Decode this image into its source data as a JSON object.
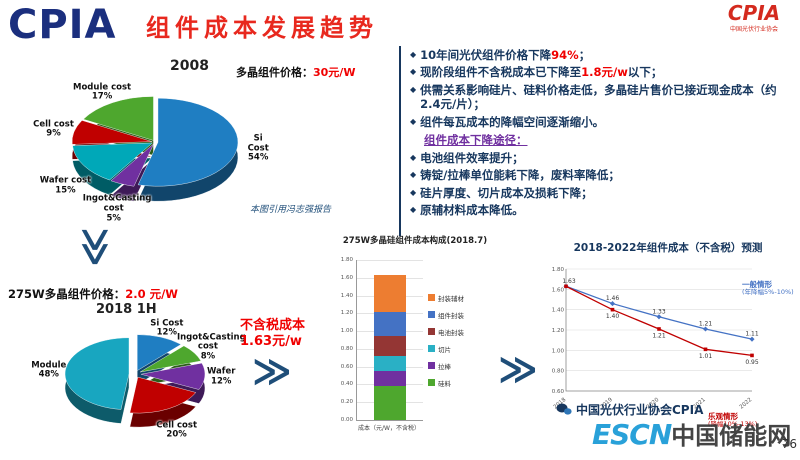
{
  "header": {
    "logo_text": "CPIA",
    "title": "组件成本发展趋势",
    "org_logo_text": "CPIA",
    "org_logo_sub": "中国光伏行业协会"
  },
  "glyphs": {
    "chevron": "≫",
    "bullet": "◆"
  },
  "section_2008": {
    "price_label": "多晶组件价格：",
    "price_value": "30元/W",
    "year": "2008",
    "source_note": "本图引用冯志强报告"
  },
  "section_2018": {
    "price_label": "275W多晶组件价格：",
    "price_value": "2.0 元/W",
    "year": "2018 1H",
    "cost_note_line1": "不含税成本",
    "cost_note_line2": "1.63元/w"
  },
  "bullet_panel": {
    "items": [
      {
        "segments": [
          {
            "t": "10年间光伏组件价格下降"
          },
          {
            "t": "94%",
            "hl": true
          },
          {
            "t": "；"
          }
        ]
      },
      {
        "segments": [
          {
            "t": "现阶段组件不含税成本已下降至"
          },
          {
            "t": "1.8元/w",
            "hl": true
          },
          {
            "t": "以下；"
          }
        ]
      },
      {
        "segments": [
          {
            "t": "供需关系影响硅片、硅料价格走低，多晶硅片售价已接近现金成本（约2.4元/片）；"
          }
        ]
      },
      {
        "segments": [
          {
            "t": "组件每瓦成本的降幅空间逐渐缩小。"
          }
        ]
      }
    ],
    "subheading": "组件成本下降途径：",
    "sub_items": [
      {
        "segments": [
          {
            "t": "电池组件效率提升；"
          }
        ]
      },
      {
        "segments": [
          {
            "t": "铸锭/拉棒单位能耗下降，废料率降低；"
          }
        ]
      },
      {
        "segments": [
          {
            "t": "硅片厚度、切片成本及损耗下降；"
          }
        ]
      },
      {
        "segments": [
          {
            "t": "原辅材料成本降低。"
          }
        ]
      }
    ]
  },
  "chart_data": [
    {
      "id": "pie2008",
      "type": "pie",
      "title": "2008",
      "slices": [
        {
          "label": "Si Cost",
          "pct": "54%",
          "value": 54,
          "color": "#1f7ec2"
        },
        {
          "label": "Ingot&Casting cost",
          "pct": "5%",
          "value": 5,
          "color": "#7030a0"
        },
        {
          "label": "Wafer cost",
          "pct": "15%",
          "value": 15,
          "color": "#00a8b8"
        },
        {
          "label": "Cell cost",
          "pct": "9%",
          "value": 9,
          "color": "#c00000"
        },
        {
          "label": "Module cost",
          "pct": "17%",
          "value": 17,
          "color": "#4ea72e"
        }
      ]
    },
    {
      "id": "pie2018",
      "type": "pie",
      "title": "2018 1H",
      "slices": [
        {
          "label": "Si Cost",
          "pct": "12%",
          "value": 12,
          "color": "#1f7ec2"
        },
        {
          "label": "Ingot&Casting cost",
          "pct": "8%",
          "value": 8,
          "color": "#4ea72e"
        },
        {
          "label": "Wafer",
          "pct": "12%",
          "value": 12,
          "color": "#7030a0"
        },
        {
          "label": "Cell cost",
          "pct": "20%",
          "value": 20,
          "color": "#c00000"
        },
        {
          "label": "Module",
          "pct": "48%",
          "value": 48,
          "color": "#18a6c0"
        }
      ]
    },
    {
      "id": "bar_cost",
      "type": "bar",
      "stacked": true,
      "title": "275W多晶硅组件成本构成(2018.7)",
      "xlabel": "成本（元/W，不含税）",
      "ylim": [
        0,
        1.8
      ],
      "ytick_step": 0.2,
      "total": 1.63,
      "segments": [
        {
          "label": "硅料",
          "value": 0.38,
          "color": "#4ea72e"
        },
        {
          "label": "拉棒",
          "value": 0.17,
          "color": "#7030a0"
        },
        {
          "label": "切片",
          "value": 0.17,
          "color": "#2ab0c5"
        },
        {
          "label": "电池封装",
          "value": 0.23,
          "color": "#943634"
        },
        {
          "label": "组件封装",
          "value": 0.27,
          "color": "#4472c4"
        },
        {
          "label": "封装辅材",
          "value": 0.41,
          "color": "#ed7d31"
        }
      ]
    },
    {
      "id": "line_forecast",
      "type": "line",
      "title": "2018-2022年组件成本（不含税）预测",
      "x": [
        "2018",
        "2019",
        "2020",
        "2021",
        "2022"
      ],
      "ylim": [
        0.6,
        1.8
      ],
      "ytick_step": 0.2,
      "legend_position": "annotations",
      "series": [
        {
          "name": "一般情形",
          "sub": "(年降幅5%-10%)",
          "color": "#4472c4",
          "values": [
            1.63,
            1.46,
            1.33,
            1.21,
            1.11
          ]
        },
        {
          "name": "乐观情形",
          "sub": "(降幅10%-13%)",
          "color": "#c00000",
          "values": [
            1.63,
            1.4,
            1.21,
            1.01,
            0.95
          ]
        }
      ]
    }
  ],
  "footer": {
    "org_line": "中国光伏行业协会CPIA",
    "watermark_en": "ESCN",
    "watermark_cn": "中国储能网",
    "page": "76"
  }
}
